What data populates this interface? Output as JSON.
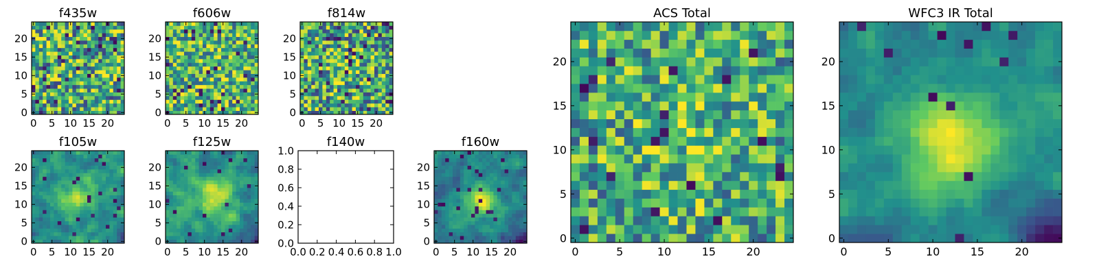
{
  "figure": {
    "colormap": [
      "#440154",
      "#3b528b",
      "#21918c",
      "#5ec962",
      "#fde725"
    ]
  },
  "chart_data": [
    {
      "type": "heatmap",
      "title": "f435w",
      "size": 25,
      "xticks": [
        "0",
        "5",
        "10",
        "15",
        "20"
      ],
      "yticks": [
        "0",
        "5",
        "10",
        "15",
        "20"
      ],
      "pattern": {
        "mode": "noise",
        "seed": 11,
        "base": 0.62,
        "amp": 0.42,
        "blob": 0.0,
        "cx": 12,
        "cy": 12,
        "sigma": 3,
        "lowCorner": 0,
        "holes": 0.05
      }
    },
    {
      "type": "heatmap",
      "title": "f606w",
      "size": 25,
      "xticks": [
        "0",
        "5",
        "10",
        "15",
        "20"
      ],
      "yticks": [
        "0",
        "5",
        "10",
        "15",
        "20"
      ],
      "pattern": {
        "mode": "noise",
        "seed": 23,
        "base": 0.66,
        "amp": 0.38,
        "blob": 0.05,
        "cx": 12,
        "cy": 12,
        "sigma": 3,
        "lowCorner": 0,
        "holes": 0.04
      }
    },
    {
      "type": "heatmap",
      "title": "f814w",
      "size": 25,
      "xticks": [
        "0",
        "5",
        "10",
        "15",
        "20"
      ],
      "yticks": [
        "0",
        "5",
        "10",
        "15",
        "20"
      ],
      "pattern": {
        "mode": "noise",
        "seed": 37,
        "base": 0.6,
        "amp": 0.42,
        "blob": 0.18,
        "cx": 12,
        "cy": 12,
        "sigma": 3,
        "lowCorner": 0,
        "holes": 0.05
      }
    },
    {
      "type": "heatmap",
      "title": "f105w",
      "size": 25,
      "xticks": [
        "0",
        "5",
        "10",
        "15",
        "20"
      ],
      "yticks": [
        "0",
        "5",
        "10",
        "15",
        "20"
      ],
      "pattern": {
        "mode": "smooth",
        "seed": 41,
        "base": 0.5,
        "amp": 0.38,
        "blob": 0.35,
        "cx": 12,
        "cy": 12,
        "sigma": 3.5,
        "lowCorner": 0.2,
        "holes": 0.03
      }
    },
    {
      "type": "heatmap",
      "title": "f125w",
      "size": 25,
      "xticks": [
        "0",
        "5",
        "10",
        "15",
        "20"
      ],
      "yticks": [
        "0",
        "5",
        "10",
        "15",
        "20"
      ],
      "pattern": {
        "mode": "smooth",
        "seed": 53,
        "base": 0.52,
        "amp": 0.36,
        "blob": 0.4,
        "cx": 13,
        "cy": 12,
        "sigma": 3.5,
        "lowCorner": 0.2,
        "holes": 0.03
      }
    },
    {
      "type": "empty",
      "title": "f140w",
      "xticks": [
        "0.0",
        "0.2",
        "0.4",
        "0.6",
        "0.8",
        "1.0"
      ],
      "yticks": [
        "0.0",
        "0.2",
        "0.4",
        "0.6",
        "0.8",
        "1.0"
      ],
      "xlim": [
        0,
        1
      ],
      "ylim": [
        0,
        1
      ]
    },
    {
      "type": "heatmap",
      "title": "f160w",
      "size": 25,
      "xticks": [
        "0",
        "5",
        "10",
        "15",
        "20"
      ],
      "yticks": [
        "0",
        "5",
        "10",
        "15",
        "20"
      ],
      "pattern": {
        "mode": "smooth",
        "seed": 67,
        "base": 0.45,
        "amp": 0.32,
        "blob": 0.5,
        "cx": 12,
        "cy": 11,
        "sigma": 3,
        "lowCorner": 0.3,
        "holes": 0.03
      }
    },
    {
      "type": "heatmap",
      "title": "ACS Total",
      "size": 25,
      "xticks": [
        "0",
        "5",
        "10",
        "15",
        "20"
      ],
      "yticks": [
        "0",
        "5",
        "10",
        "15",
        "20"
      ],
      "pattern": {
        "mode": "noise",
        "seed": 79,
        "base": 0.62,
        "amp": 0.36,
        "blob": 0.12,
        "cx": 12,
        "cy": 12,
        "sigma": 4,
        "lowCorner": 0,
        "holes": 0.04
      }
    },
    {
      "type": "heatmap",
      "title": "WFC3 IR Total",
      "size": 25,
      "xticks": [
        "0",
        "5",
        "10",
        "15",
        "20"
      ],
      "yticks": [
        "0",
        "5",
        "10",
        "15",
        "20"
      ],
      "pattern": {
        "mode": "smooth",
        "seed": 97,
        "base": 0.48,
        "amp": 0.26,
        "blob": 0.5,
        "cx": 12,
        "cy": 11,
        "sigma": 3.5,
        "lowCorner": 0.4,
        "holes": 0.02
      }
    }
  ]
}
